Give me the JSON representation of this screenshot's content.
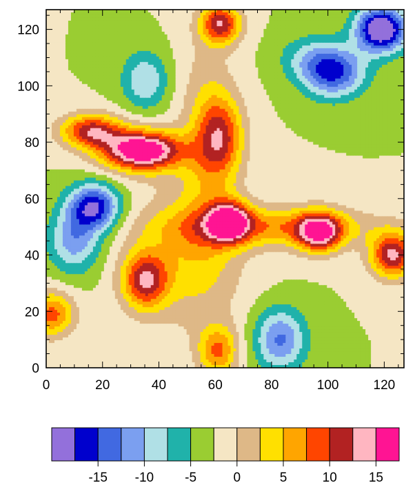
{
  "chart_data": {
    "type": "heatmap",
    "title": "",
    "xlabel": "",
    "ylabel": "",
    "xlim": [
      0,
      127
    ],
    "ylim": [
      0,
      127
    ],
    "x_ticks": [
      0,
      20,
      40,
      60,
      80,
      100,
      120
    ],
    "y_ticks": [
      0,
      20,
      40,
      60,
      80,
      100,
      120
    ],
    "x_tick_labels": [
      "0",
      "20",
      "40",
      "60",
      "80",
      "100",
      "120"
    ],
    "y_tick_labels": [
      "0",
      "20",
      "40",
      "60",
      "80",
      "100",
      "120"
    ],
    "background_level": -2.5,
    "features": [
      {
        "x": 119,
        "y": 120,
        "amp": -19.5,
        "rx": 9,
        "ry": 8
      },
      {
        "x": 102,
        "y": 105,
        "amp": -13.5,
        "rx": 11,
        "ry": 9
      },
      {
        "x": 92,
        "y": 110,
        "amp": -4,
        "rx": 10,
        "ry": 8
      },
      {
        "x": 35,
        "y": 102,
        "amp": -7.5,
        "rx": 8,
        "ry": 10
      },
      {
        "x": 17,
        "y": 57,
        "amp": -15,
        "rx": 9,
        "ry": 8
      },
      {
        "x": 10,
        "y": 45,
        "amp": -9,
        "rx": 9,
        "ry": 11
      },
      {
        "x": 83,
        "y": 10,
        "amp": -10.5,
        "rx": 9,
        "ry": 11
      },
      {
        "x": 34,
        "y": 77,
        "amp": 22,
        "rx": 14,
        "ry": 7
      },
      {
        "x": 16,
        "y": 84,
        "amp": 14,
        "rx": 11,
        "ry": 6
      },
      {
        "x": 62,
        "y": 122,
        "amp": 14,
        "rx": 7,
        "ry": 7
      },
      {
        "x": 65,
        "y": 52,
        "amp": 16,
        "rx": 7,
        "ry": 7
      },
      {
        "x": 97,
        "y": 48,
        "amp": 16,
        "rx": 8,
        "ry": 7
      },
      {
        "x": 123,
        "y": 40,
        "amp": 15.5,
        "rx": 8,
        "ry": 8
      },
      {
        "x": 35,
        "y": 31,
        "amp": 13,
        "rx": 8,
        "ry": 10
      },
      {
        "x": 61,
        "y": 6,
        "amp": 10,
        "rx": 7,
        "ry": 9
      },
      {
        "x": 2,
        "y": 19,
        "amp": 11,
        "rx": 8,
        "ry": 8
      },
      {
        "x": 62,
        "y": 82,
        "amp": 11,
        "rx": 8,
        "ry": 14
      },
      {
        "x": 80,
        "y": 50,
        "amp": 9,
        "rx": 35,
        "ry": 7
      },
      {
        "x": 57,
        "y": 80,
        "amp": 5,
        "rx": 10,
        "ry": 40
      },
      {
        "x": 50,
        "y": 40,
        "amp": 6,
        "rx": 20,
        "ry": 25
      }
    ],
    "levels": [
      -17.5,
      -15,
      -12.5,
      -10,
      -7.5,
      -5,
      -2.5,
      0,
      2.5,
      5,
      7.5,
      10,
      12.5,
      15,
      17.5
    ],
    "colors": [
      "#9370db",
      "#0000cd",
      "#4169e1",
      "#7b9ff0",
      "#b0e0e6",
      "#20b2aa",
      "#9acd32",
      "#f5e6c4",
      "#deb887",
      "#ffe000",
      "#ffa500",
      "#ff4500",
      "#b22222",
      "#ffb6c1",
      "#ff1493"
    ],
    "colorbar_labels": [
      "-15",
      "-10",
      "-5",
      "0",
      "5",
      "10",
      "15"
    ],
    "colorbar_label_values": [
      -15,
      -10,
      -5,
      0,
      5,
      10,
      15
    ]
  }
}
